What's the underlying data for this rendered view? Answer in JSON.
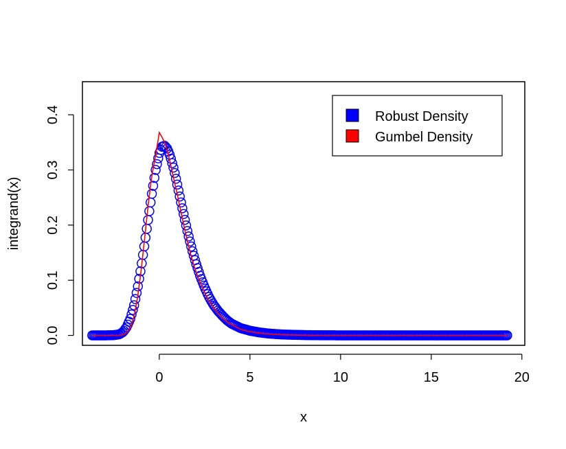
{
  "chart_data": {
    "type": "scatter",
    "title": "",
    "xlabel": "x",
    "ylabel": "integrand(x)",
    "xlim": [
      -4.24,
      20.16
    ],
    "ylim": [
      -0.018,
      0.46
    ],
    "x_ticks": [
      0,
      5,
      10,
      15,
      20
    ],
    "y_ticks": [
      0.0,
      0.1,
      0.2,
      0.3,
      0.4
    ],
    "x_tick_labels": [
      "0",
      "5",
      "10",
      "15",
      "20"
    ],
    "y_tick_labels": [
      "0.0",
      "0.1",
      "0.2",
      "0.3",
      "0.4"
    ],
    "grid": false,
    "legend_position": "top-right",
    "series": [
      {
        "name": "Robust Density",
        "type": "points",
        "marker": "open-circle",
        "color": "#0000ff",
        "x": [
          -3.7,
          -3.0,
          -2.5,
          -2.2,
          -2.0,
          -1.8,
          -1.6,
          -1.4,
          -1.2,
          -1.0,
          -0.8,
          -0.6,
          -0.4,
          -0.2,
          0.0,
          0.15,
          0.3,
          0.45,
          0.6,
          0.8,
          1.0,
          1.2,
          1.4,
          1.6,
          1.8,
          2.0,
          2.25,
          2.5,
          2.75,
          3.0,
          3.25,
          3.5,
          3.75,
          4.0,
          4.5,
          5.0,
          5.5,
          6.0,
          6.5,
          7.0,
          8.0,
          9.0,
          10.0,
          11.0,
          12.0,
          13.0,
          14.0,
          15.0,
          16.0,
          17.0,
          18.0,
          19.2
        ],
        "y": [
          0.0,
          0.0,
          0.0005,
          0.002,
          0.006,
          0.015,
          0.03,
          0.053,
          0.085,
          0.124,
          0.168,
          0.214,
          0.259,
          0.3,
          0.33,
          0.342,
          0.344,
          0.338,
          0.325,
          0.302,
          0.272,
          0.241,
          0.211,
          0.182,
          0.156,
          0.133,
          0.108,
          0.087,
          0.069,
          0.055,
          0.044,
          0.035,
          0.027,
          0.021,
          0.013,
          0.0085,
          0.0055,
          0.0035,
          0.0022,
          0.0014,
          0.0006,
          0.0002,
          0.0001,
          0.0,
          0.0,
          0.0,
          0.0,
          0.0,
          0.0,
          0.0,
          0.0,
          0.0
        ]
      },
      {
        "name": "Gumbel Density",
        "type": "line",
        "color": "#ff0000",
        "x": [
          -3.7,
          -3.0,
          -2.5,
          -2.2,
          -2.0,
          -1.8,
          -1.6,
          -1.4,
          -1.2,
          -1.0,
          -0.8,
          -0.6,
          -0.4,
          -0.2,
          0.0,
          0.15,
          0.3,
          0.45,
          0.6,
          0.8,
          1.0,
          1.2,
          1.4,
          1.6,
          1.8,
          2.0,
          2.25,
          2.5,
          2.75,
          3.0,
          3.25,
          3.5,
          3.75,
          4.0,
          4.5,
          5.0,
          5.5,
          6.0,
          6.5,
          7.0,
          8.0,
          9.0,
          10.0,
          11.0,
          12.0,
          13.0,
          14.0,
          15.0,
          16.0,
          17.0,
          18.0,
          19.2
        ],
        "y": [
          0.0,
          0.0,
          1e-05,
          0.0002,
          0.0012,
          0.0046,
          0.0138,
          0.0336,
          0.0683,
          0.1182,
          0.1788,
          0.2405,
          0.2922,
          0.3262,
          0.3679,
          0.3593,
          0.3495,
          0.3338,
          0.3135,
          0.2836,
          0.2546,
          0.2225,
          0.192,
          0.164,
          0.139,
          0.1182,
          0.0959,
          0.0774,
          0.0621,
          0.0498,
          0.0395,
          0.0313,
          0.0247,
          0.0193,
          0.011,
          0.0067,
          0.004,
          0.0025,
          0.0015,
          0.0009,
          0.0003,
          0.0001,
          5e-05,
          0.0,
          0.0,
          0.0,
          0.0,
          0.0,
          0.0,
          0.0,
          0.0,
          0.0
        ]
      }
    ]
  }
}
